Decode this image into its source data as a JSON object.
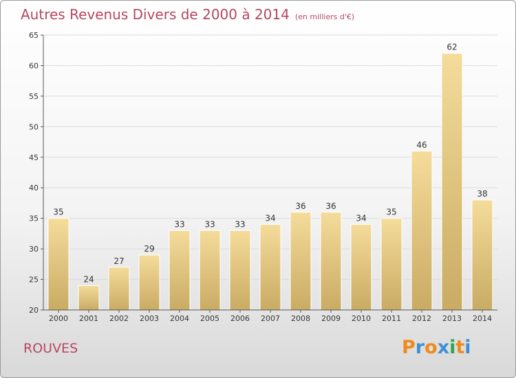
{
  "header": {
    "title": "Autres Revenus Divers de 2000 à 2014",
    "unit": "(en milliers d'€)"
  },
  "footer": {
    "commune": "ROUVES",
    "logo": {
      "letters": [
        "P",
        "r",
        "o",
        "x",
        "i",
        "t",
        "i"
      ],
      "colors": [
        "#f08a1c",
        "#3f8fd6",
        "#f08a1c",
        "#3f8fd6",
        "#2aa84a",
        "#f08a1c",
        "#3f8fd6"
      ]
    }
  },
  "chart_data": {
    "type": "bar",
    "categories": [
      "2000",
      "2001",
      "2002",
      "2003",
      "2004",
      "2005",
      "2006",
      "2007",
      "2008",
      "2009",
      "2010",
      "2011",
      "2012",
      "2013",
      "2014"
    ],
    "values": [
      35,
      24,
      27,
      29,
      33,
      33,
      33,
      34,
      36,
      36,
      34,
      35,
      46,
      62,
      38
    ],
    "ylim": [
      20,
      65
    ],
    "yticks": [
      20,
      25,
      30,
      35,
      40,
      45,
      50,
      55,
      60,
      65
    ],
    "grid": true,
    "bar_color": "#e8c97a"
  }
}
